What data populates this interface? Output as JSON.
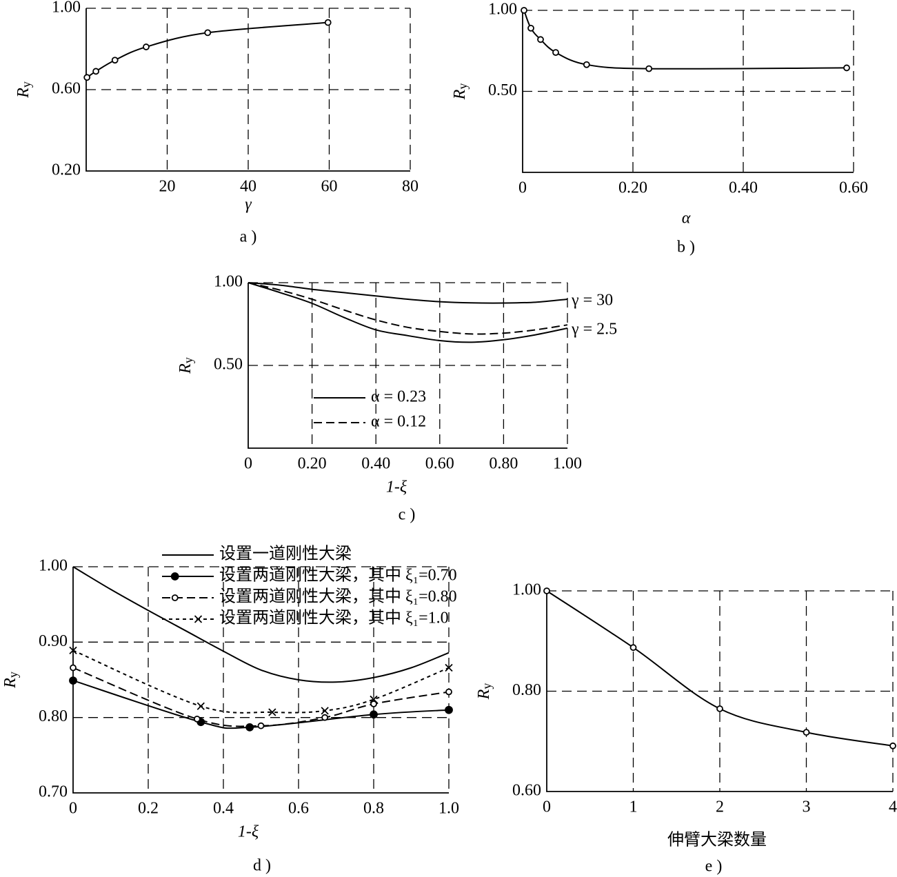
{
  "chart_data": [
    {
      "type": "line",
      "caption": "a )",
      "xlabel": "γ",
      "ylabel": "Ry",
      "grid": true,
      "xlim": [
        0,
        80
      ],
      "xticks": [
        20,
        40,
        60,
        80
      ],
      "ylim": [
        0.2,
        1.0
      ],
      "yticks": [
        {
          "value": 0.2,
          "label": "0.20"
        },
        {
          "value": 0.6,
          "label": "0.60"
        },
        {
          "value": 1.0,
          "label": "1.00"
        }
      ],
      "x": [
        0.2,
        2.4,
        7.1,
        14.8,
        30,
        59.7
      ],
      "series": [
        {
          "color": "#000000",
          "dash": "solid",
          "marker": "open",
          "values": [
            0.66,
            0.69,
            0.745,
            0.81,
            0.88,
            0.93
          ]
        }
      ]
    },
    {
      "type": "line",
      "caption": "b )",
      "xlabel": "α",
      "ylabel": "Ry",
      "grid": true,
      "xlim": [
        0,
        0.6
      ],
      "xticks": [
        0,
        {
          "value": 0.2,
          "label": "0.20"
        },
        {
          "value": 0.4,
          "label": "0.40"
        },
        {
          "value": 0.6,
          "label": "0.60"
        }
      ],
      "ylim": [
        0,
        1.0
      ],
      "yticks": [
        {
          "value": 0.5,
          "label": "0.50"
        },
        {
          "value": 1.0,
          "label": "1.00"
        }
      ],
      "x": [
        0.0025,
        0.015,
        0.0325,
        0.06,
        0.116,
        0.229,
        0.5875
      ],
      "series": [
        {
          "color": "#000000",
          "dash": "solid",
          "marker": "open",
          "values": [
            1.0,
            0.89,
            0.82,
            0.74,
            0.665,
            0.64,
            0.645
          ]
        }
      ]
    },
    {
      "type": "line",
      "caption": "c )",
      "xlabel": "1-ξ",
      "ylabel": "Ry",
      "grid": true,
      "xlim": [
        0,
        1.0
      ],
      "xticks": [
        0,
        {
          "value": 0.2,
          "label": "0.20"
        },
        {
          "value": 0.4,
          "label": "0.40"
        },
        {
          "value": 0.6,
          "label": "0.60"
        },
        {
          "value": 0.8,
          "label": "0.80"
        },
        {
          "value": 1.0,
          "label": "1.00"
        }
      ],
      "ylim": [
        0,
        1.0
      ],
      "yticks": [
        {
          "value": 0.5,
          "label": "0.50"
        },
        {
          "value": 1.0,
          "label": "1.00"
        }
      ],
      "x": [
        0,
        0.1,
        0.2,
        0.3,
        0.4,
        0.5,
        0.6,
        0.7,
        0.8,
        0.9,
        1.0
      ],
      "series": [
        {
          "name": "α = 0.23",
          "label": "γ = 2.5",
          "color": "#000000",
          "dash": "solid",
          "marker": null,
          "values": [
            1.0,
            0.94,
            0.875,
            0.79,
            0.715,
            0.68,
            0.65,
            0.64,
            0.655,
            0.685,
            0.725
          ]
        },
        {
          "name": "α = 0.12",
          "color": "#000000",
          "dash": "long",
          "marker": null,
          "values": [
            1.0,
            0.955,
            0.9,
            0.835,
            0.775,
            0.73,
            0.705,
            0.69,
            0.695,
            0.715,
            0.745
          ]
        },
        {
          "label": "γ = 30",
          "color": "#000000",
          "dash": "solid",
          "marker": null,
          "values": [
            1.0,
            0.985,
            0.96,
            0.94,
            0.92,
            0.9,
            0.885,
            0.878,
            0.877,
            0.882,
            0.9
          ]
        }
      ]
    },
    {
      "type": "line",
      "caption": "d )",
      "xlabel": "1-ξ",
      "ylabel": "Ry",
      "grid": true,
      "xlim": [
        0,
        1.0
      ],
      "xticks": [
        0,
        0.2,
        0.4,
        0.6,
        0.8,
        {
          "value": 1.0,
          "label": "1.0"
        }
      ],
      "ylim": [
        0.7,
        1.0
      ],
      "yticks": [
        {
          "value": 0.7,
          "label": "0.70"
        },
        {
          "value": 0.8,
          "label": "0.80"
        },
        {
          "value": 0.9,
          "label": "0.90"
        },
        {
          "value": 1.0,
          "label": "1.00"
        }
      ],
      "series": [
        {
          "name": "设置一道刚性大梁",
          "color": "#000000",
          "dash": "solid",
          "marker": null,
          "x": [
            0,
            0.1,
            0.2,
            0.3,
            0.4,
            0.5,
            0.6,
            0.7,
            0.8,
            0.9,
            1.0
          ],
          "values": [
            1.0,
            0.97,
            0.942,
            0.915,
            0.888,
            0.863,
            0.85,
            0.847,
            0.853,
            0.866,
            0.886
          ]
        },
        {
          "name": "设置两道刚性大梁，其中 ξ₁=0.70",
          "color": "#000000",
          "dash": "solid",
          "marker": "filled",
          "x": [
            0,
            0.34,
            0.47,
            0.8,
            1.0
          ],
          "values": [
            0.849,
            0.794,
            0.787,
            0.804,
            0.81
          ]
        },
        {
          "name": "设置两道刚性大梁，其中 ξ₁=0.80",
          "color": "#000000",
          "dash": "long",
          "marker": "open",
          "x": [
            0,
            0.33,
            0.5,
            0.67,
            0.8,
            1.0
          ],
          "values": [
            0.866,
            0.798,
            0.789,
            0.8,
            0.818,
            0.834
          ]
        },
        {
          "name": "设置两道刚性大梁，其中 ξ₁=1.0",
          "color": "#000000",
          "dash": "short",
          "marker": "x",
          "x": [
            0,
            0.34,
            0.53,
            0.67,
            0.8,
            1.0
          ],
          "values": [
            0.889,
            0.815,
            0.807,
            0.809,
            0.824,
            0.866
          ]
        }
      ]
    },
    {
      "type": "line",
      "caption": "e )",
      "xlabel": "伸臂大梁数量",
      "ylabel": "Ry",
      "grid": true,
      "xlim": [
        0,
        4
      ],
      "xticks": [
        0,
        1,
        2,
        3,
        4
      ],
      "ylim": [
        0.6,
        1.0
      ],
      "yticks": [
        {
          "value": 0.6,
          "label": "0.60"
        },
        {
          "value": 0.8,
          "label": "0.80"
        },
        {
          "value": 1.0,
          "label": "1.00"
        }
      ],
      "x": [
        0,
        1,
        2,
        3,
        4
      ],
      "series": [
        {
          "color": "#000000",
          "dash": "solid",
          "marker": "open",
          "values": [
            1.0,
            0.887,
            0.765,
            0.718,
            0.691
          ]
        }
      ]
    }
  ]
}
